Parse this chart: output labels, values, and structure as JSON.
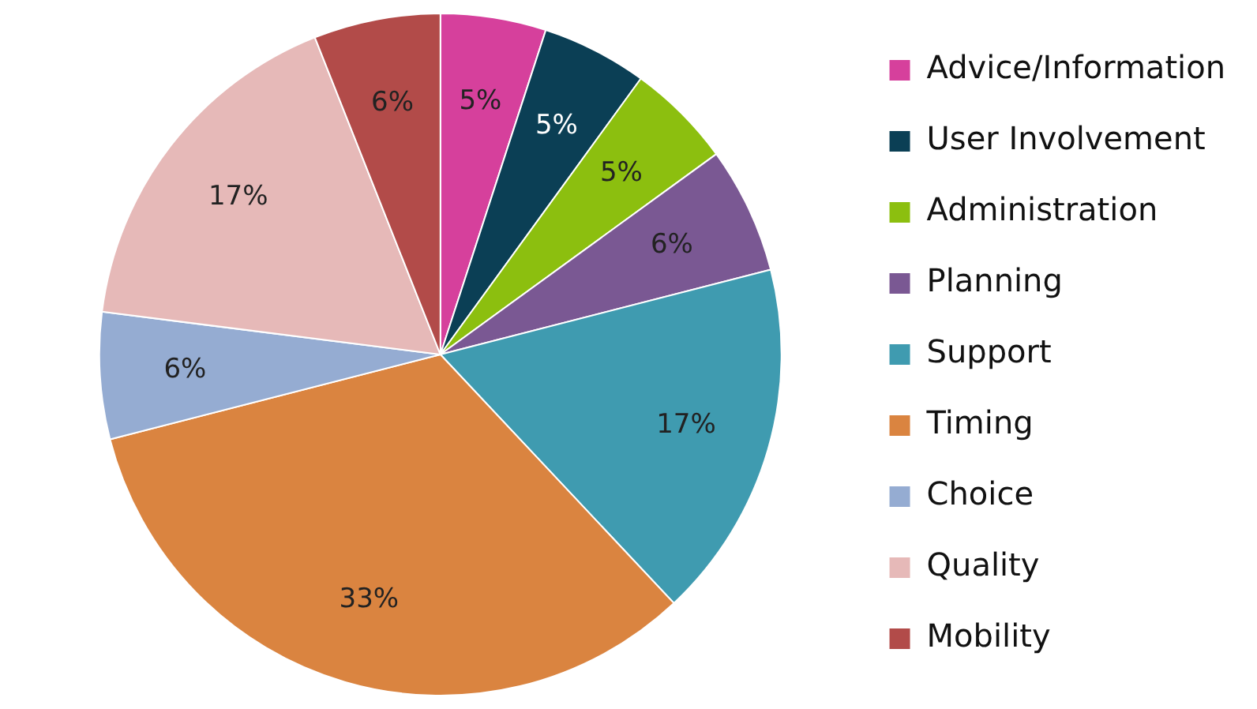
{
  "chart_data": {
    "type": "pie",
    "categories": [
      "Advice/Information",
      "User Involvement",
      "Administration",
      "Planning",
      "Support",
      "Timing",
      "Choice",
      "Quality",
      "Mobility"
    ],
    "values": [
      5,
      5,
      5,
      6,
      17,
      33,
      6,
      17,
      6
    ],
    "value_labels": [
      "5%",
      "5%",
      "5%",
      "6%",
      "17%",
      "33%",
      "6%",
      "17%",
      "6%"
    ],
    "colors": [
      "#d6409c",
      "#0b3f55",
      "#8cbf0f",
      "#7a5893",
      "#3f9bb0",
      "#da8440",
      "#95acd2",
      "#e6b9b8",
      "#b24b49"
    ],
    "legend": "right"
  }
}
